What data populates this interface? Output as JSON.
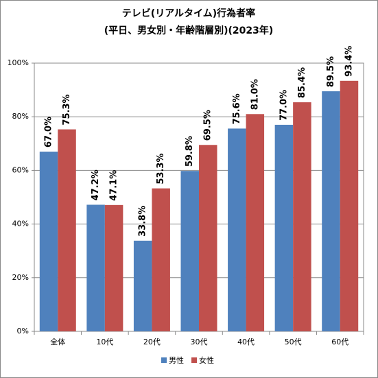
{
  "chart_data": {
    "type": "bar",
    "title": "テレビ(リアルタイム)行為者率",
    "subtitle": "(平日、男女別・年齢階層別)(2023年)",
    "categories": [
      "全体",
      "10代",
      "20代",
      "30代",
      "40代",
      "50代",
      "60代"
    ],
    "series": [
      {
        "name": "男性",
        "color": "#4f81bd",
        "values": [
          67.0,
          47.2,
          33.8,
          59.8,
          75.6,
          77.0,
          89.5
        ],
        "value_labels": [
          "67.0%",
          "47.2%",
          "33.8%",
          "59.8%",
          "75.6%",
          "77.0%",
          "89.5%"
        ]
      },
      {
        "name": "女性",
        "color": "#c0504d",
        "values": [
          75.3,
          47.1,
          53.3,
          69.5,
          81.0,
          85.4,
          93.4
        ],
        "value_labels": [
          "75.3%",
          "47.1%",
          "53.3%",
          "69.5%",
          "81.0%",
          "85.4%",
          "93.4%"
        ]
      }
    ],
    "ylim": [
      0,
      100
    ],
    "yticks": [
      {
        "value": 0,
        "label": "0%"
      },
      {
        "value": 20,
        "label": "20%"
      },
      {
        "value": 40,
        "label": "40%"
      },
      {
        "value": 60,
        "label": "60%"
      },
      {
        "value": 80,
        "label": "80%"
      },
      {
        "value": 100,
        "label": "100%"
      }
    ],
    "grid": true,
    "legend": "bottom"
  }
}
